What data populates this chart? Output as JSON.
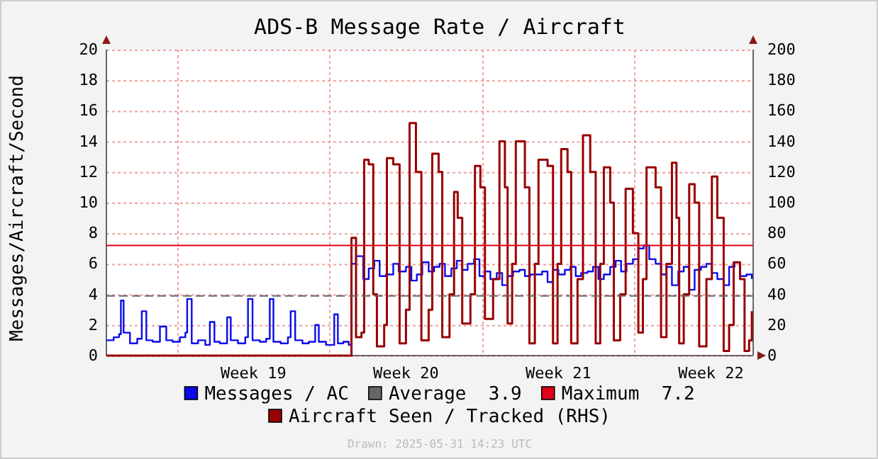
{
  "chart_data": {
    "type": "step",
    "title": "ADS-B Message Rate / Aircraft",
    "ylabel": "Messages/Aircraft/Second",
    "xlim": [
      "2025-05-01T18:00",
      "2025-05-31T10:30"
    ],
    "xticks": [
      {
        "value": "2025-05-05T00:00",
        "label": null
      },
      {
        "value": "2025-05-08T12:00",
        "label": "Week 19"
      },
      {
        "value": "2025-05-12T00:00",
        "label": null
      },
      {
        "value": "2025-05-15T12:00",
        "label": "Week 20"
      },
      {
        "value": "2025-05-19T00:00",
        "label": null
      },
      {
        "value": "2025-05-22T12:00",
        "label": "Week 21"
      },
      {
        "value": "2025-05-26T00:00",
        "label": null
      },
      {
        "value": "2025-05-29T12:00",
        "label": "Week 22"
      }
    ],
    "ylim": [
      0,
      20
    ],
    "yticks": [
      0,
      2,
      4,
      6,
      8,
      10,
      12,
      14,
      16,
      18,
      20
    ],
    "y2lim": [
      0,
      200
    ],
    "y2ticks": [
      0,
      20,
      40,
      60,
      80,
      100,
      120,
      140,
      160,
      180,
      200
    ],
    "grid": true,
    "legend": "bottom",
    "ref_lines": [
      {
        "axis": "y",
        "value": 3.9,
        "label": "Average  3.9",
        "color": "#666666",
        "line_style": "dashed"
      },
      {
        "axis": "y",
        "value": 7.2,
        "label": "Maximum  7.2",
        "color": "#e0001a",
        "line_style": "solid"
      }
    ],
    "annotations": [
      "Drawn: 2025-05-31 14:23 UTC"
    ],
    "series": [
      {
        "name": "Messages / AC",
        "color": "#0a0aeb",
        "x": [
          "2025-05-01T18:00",
          "2025-05-02T02:00",
          "2025-05-02T08:00",
          "2025-05-02T10:00",
          "2025-05-02T13:00",
          "2025-05-02T20:00",
          "2025-05-03T04:00",
          "2025-05-03T09:00",
          "2025-05-03T14:00",
          "2025-05-03T21:00",
          "2025-05-04T05:00",
          "2025-05-04T12:00",
          "2025-05-04T19:00",
          "2025-05-05T03:00",
          "2025-05-05T09:00",
          "2025-05-05T11:00",
          "2025-05-05T16:00",
          "2025-05-05T23:00",
          "2025-05-06T07:00",
          "2025-05-06T12:00",
          "2025-05-06T17:00",
          "2025-05-06T23:00",
          "2025-05-07T07:00",
          "2025-05-07T11:00",
          "2025-05-07T19:00",
          "2025-05-08T03:00",
          "2025-05-08T06:00",
          "2025-05-08T11:00",
          "2025-05-08T19:00",
          "2025-05-09T02:00",
          "2025-05-09T06:00",
          "2025-05-09T10:00",
          "2025-05-09T18:00",
          "2025-05-10T02:00",
          "2025-05-10T05:00",
          "2025-05-10T10:00",
          "2025-05-10T18:00",
          "2025-05-11T01:00",
          "2025-05-11T08:00",
          "2025-05-11T12:00",
          "2025-05-11T20:00",
          "2025-05-12T05:00",
          "2025-05-12T09:00",
          "2025-05-12T15:00",
          "2025-05-12T21:00",
          "2025-05-13T00:00",
          "2025-05-13T05:00",
          "2025-05-13T13:00",
          "2025-05-13T19:00",
          "2025-05-14T01:00",
          "2025-05-14T07:00",
          "2025-05-14T14:00",
          "2025-05-14T22:00",
          "2025-05-15T04:00",
          "2025-05-15T12:00",
          "2025-05-15T18:00",
          "2025-05-16T00:00",
          "2025-05-16T06:00",
          "2025-05-16T13:00",
          "2025-05-16T19:00",
          "2025-05-17T01:00",
          "2025-05-17T07:00",
          "2025-05-17T14:00",
          "2025-05-17T20:00",
          "2025-05-18T02:00",
          "2025-05-18T08:00",
          "2025-05-18T15:00",
          "2025-05-18T21:00",
          "2025-05-19T03:00",
          "2025-05-19T09:00",
          "2025-05-19T16:00",
          "2025-05-19T22:00",
          "2025-05-20T04:00",
          "2025-05-20T10:00",
          "2025-05-20T17:00",
          "2025-05-20T23:00",
          "2025-05-21T05:00",
          "2025-05-21T11:00",
          "2025-05-21T18:00",
          "2025-05-22T00:00",
          "2025-05-22T06:00",
          "2025-05-22T12:00",
          "2025-05-22T19:00",
          "2025-05-23T01:00",
          "2025-05-23T07:00",
          "2025-05-23T13:00",
          "2025-05-23T20:00",
          "2025-05-24T02:00",
          "2025-05-24T08:00",
          "2025-05-24T14:00",
          "2025-05-24T21:00",
          "2025-05-25T03:00",
          "2025-05-25T09:00",
          "2025-05-25T15:00",
          "2025-05-25T22:00",
          "2025-05-26T04:00",
          "2025-05-26T10:00",
          "2025-05-26T16:00",
          "2025-05-26T23:00",
          "2025-05-27T05:00",
          "2025-05-27T11:00",
          "2025-05-27T17:00",
          "2025-05-28T00:00",
          "2025-05-28T06:00",
          "2025-05-28T12:00",
          "2025-05-28T18:00",
          "2025-05-29T01:00",
          "2025-05-29T07:00",
          "2025-05-29T13:00",
          "2025-05-29T19:00",
          "2025-05-30T02:00",
          "2025-05-30T08:00",
          "2025-05-30T14:00",
          "2025-05-30T20:00",
          "2025-05-31T03:00",
          "2025-05-31T09:00"
        ],
        "values": [
          1.0,
          1.2,
          1.4,
          3.6,
          1.5,
          0.8,
          1.1,
          2.9,
          1.0,
          0.9,
          1.9,
          1.0,
          0.9,
          1.2,
          1.5,
          3.7,
          0.8,
          1.0,
          0.7,
          2.2,
          0.9,
          0.8,
          2.5,
          1.0,
          0.8,
          1.2,
          3.7,
          1.0,
          0.9,
          1.1,
          3.7,
          0.9,
          0.8,
          1.2,
          2.9,
          1.0,
          0.8,
          0.9,
          2.0,
          0.9,
          0.7,
          2.7,
          0.8,
          0.9,
          0.7,
          6.0,
          6.5,
          5.0,
          5.7,
          6.2,
          5.2,
          5.3,
          6.0,
          5.5,
          5.8,
          4.9,
          5.3,
          6.1,
          5.5,
          5.8,
          6.0,
          5.2,
          5.7,
          6.2,
          5.6,
          6.0,
          6.3,
          5.2,
          5.5,
          5.0,
          5.4,
          4.6,
          5.2,
          5.5,
          5.6,
          5.2,
          5.3,
          5.3,
          5.5,
          4.8,
          5.6,
          5.3,
          5.6,
          5.8,
          5.2,
          5.4,
          5.5,
          5.8,
          5.0,
          5.3,
          5.8,
          6.2,
          5.5,
          6.0,
          6.3,
          7.0,
          7.2,
          6.3,
          6.0,
          5.3,
          5.8,
          4.6,
          5.5,
          5.8,
          4.3,
          5.6,
          5.8,
          6.0,
          5.4,
          5.0,
          4.6,
          5.8,
          6.1,
          5.2,
          5.3,
          5.0
        ]
      },
      {
        "name": "Aircraft Seen / Tracked (RHS)",
        "color": "#990000",
        "axis": "y2",
        "x": [
          "2025-05-01T18:00",
          "2025-05-12T21:00",
          "2025-05-13T00:00",
          "2025-05-13T05:00",
          "2025-05-13T11:00",
          "2025-05-13T14:00",
          "2025-05-13T19:00",
          "2025-05-14T00:00",
          "2025-05-14T04:00",
          "2025-05-14T12:00",
          "2025-05-14T15:00",
          "2025-05-14T22:00",
          "2025-05-15T05:00",
          "2025-05-15T12:00",
          "2025-05-15T16:00",
          "2025-05-15T23:00",
          "2025-05-16T05:00",
          "2025-05-16T13:00",
          "2025-05-16T17:00",
          "2025-05-17T00:00",
          "2025-05-17T04:00",
          "2025-05-17T12:00",
          "2025-05-17T17:00",
          "2025-05-17T21:00",
          "2025-05-18T02:00",
          "2025-05-18T11:00",
          "2025-05-18T16:00",
          "2025-05-18T22:00",
          "2025-05-19T03:00",
          "2025-05-19T12:00",
          "2025-05-19T19:00",
          "2025-05-20T01:00",
          "2025-05-20T04:00",
          "2025-05-20T09:00",
          "2025-05-20T13:00",
          "2025-05-20T23:00",
          "2025-05-21T04:00",
          "2025-05-21T10:00",
          "2025-05-21T14:00",
          "2025-05-22T00:00",
          "2025-05-22T06:00",
          "2025-05-22T11:00",
          "2025-05-22T15:00",
          "2025-05-22T22:00",
          "2025-05-23T02:00",
          "2025-05-23T09:00",
          "2025-05-23T15:00",
          "2025-05-23T23:00",
          "2025-05-24T05:00",
          "2025-05-24T10:00",
          "2025-05-24T14:00",
          "2025-05-24T21:00",
          "2025-05-25T01:00",
          "2025-05-25T08:00",
          "2025-05-25T14:00",
          "2025-05-25T22:00",
          "2025-05-26T04:00",
          "2025-05-26T09:00",
          "2025-05-26T13:00",
          "2025-05-26T23:00",
          "2025-05-27T05:00",
          "2025-05-27T11:00",
          "2025-05-27T17:00",
          "2025-05-27T22:00",
          "2025-05-28T01:00",
          "2025-05-28T06:00",
          "2025-05-28T12:00",
          "2025-05-28T18:00",
          "2025-05-28T23:00",
          "2025-05-29T07:00",
          "2025-05-29T13:00",
          "2025-05-29T19:00",
          "2025-05-30T02:00",
          "2025-05-30T08:00",
          "2025-05-30T13:00",
          "2025-05-30T20:00",
          "2025-05-31T01:00",
          "2025-05-31T06:00",
          "2025-05-31T09:00"
        ],
        "values": [
          0,
          0,
          77,
          12,
          15,
          128,
          125,
          40,
          6,
          20,
          129,
          125,
          8,
          30,
          152,
          120,
          10,
          30,
          132,
          120,
          12,
          40,
          107,
          90,
          21,
          40,
          124,
          110,
          24,
          50,
          140,
          110,
          21,
          60,
          140,
          110,
          8,
          60,
          128,
          124,
          8,
          60,
          135,
          120,
          8,
          50,
          144,
          120,
          8,
          60,
          123,
          100,
          10,
          40,
          109,
          80,
          15,
          50,
          123,
          110,
          12,
          60,
          126,
          90,
          8,
          40,
          112,
          100,
          6,
          50,
          117,
          90,
          3,
          20,
          61,
          50,
          3,
          10,
          29
        ]
      }
    ]
  }
}
